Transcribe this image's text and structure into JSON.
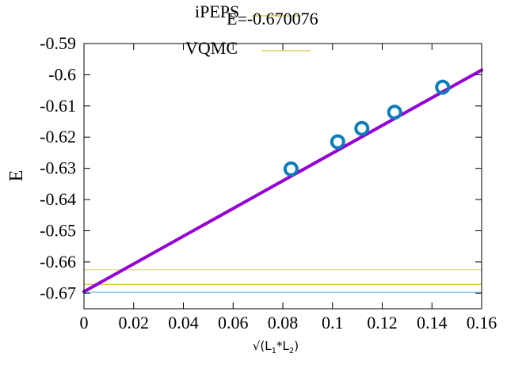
{
  "chart_data": {
    "type": "line",
    "title": "",
    "xlabel": {
      "prefix": "√(L",
      "sub1": "1",
      "mid": "*L",
      "sub2": "2",
      "suffix": ")"
    },
    "ylabel": "E",
    "xlim": [
      0,
      0.16
    ],
    "ylim": [
      -0.675,
      -0.59
    ],
    "x_ticks": [
      0,
      0.02,
      0.04,
      0.06,
      0.08,
      0.1,
      0.12,
      0.14,
      0.16
    ],
    "x_tick_labels": [
      "0",
      "0.02",
      "0.04",
      "0.06",
      "0.08",
      "0.1",
      "0.12",
      "0.14",
      "0.16"
    ],
    "y_ticks": [
      -0.67,
      -0.66,
      -0.65,
      -0.64,
      -0.63,
      -0.62,
      -0.61,
      -0.6,
      -0.59
    ],
    "y_tick_labels": [
      "-0.67",
      "-0.66",
      "-0.65",
      "-0.64",
      "-0.63",
      "-0.62",
      "-0.61",
      "-0.6",
      "-0.59"
    ],
    "grid": false,
    "legend": {
      "placement": "top",
      "entries": [
        {
          "label": "iPEPS",
          "color": "#c8b000"
        },
        {
          "label": "E=-0.670076",
          "color": "#c8b000"
        },
        {
          "label": "VQMC",
          "color": "#c8b000"
        }
      ]
    },
    "series": [
      {
        "kind": "points",
        "color": "#0a7db8",
        "x": [
          0.0833,
          0.1021,
          0.1118,
          0.125,
          0.1443
        ],
        "y": [
          -0.6302,
          -0.6215,
          -0.6172,
          -0.612,
          -0.604
        ]
      },
      {
        "kind": "fit-line",
        "color": "#9400d3",
        "x": [
          0,
          0.16
        ],
        "y": [
          -0.6695,
          -0.5985
        ]
      },
      {
        "kind": "hline",
        "color": "#d4d06a",
        "y": -0.6625
      },
      {
        "kind": "hline",
        "color": "#c8b000",
        "y": -0.6672
      },
      {
        "kind": "hline",
        "color": "#56b4e9",
        "y": -0.6697
      }
    ]
  }
}
